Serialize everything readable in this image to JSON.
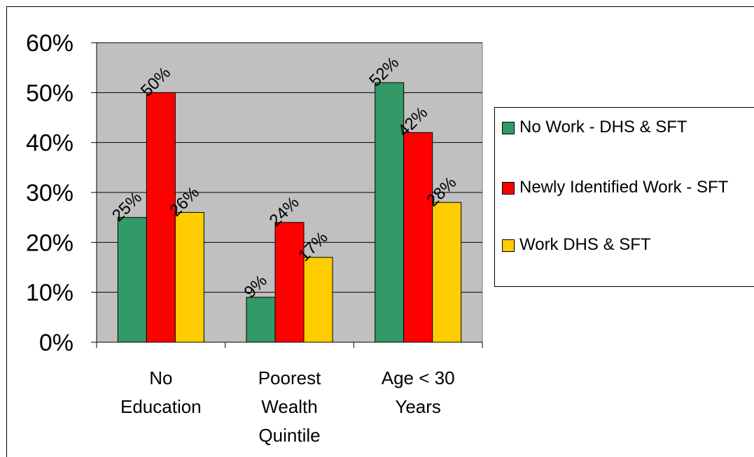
{
  "chart_data": {
    "type": "bar",
    "categories": [
      "No Education",
      "Poorest Wealth Quintile",
      "Age < 30 Years"
    ],
    "category_lines": [
      [
        "No",
        "Education"
      ],
      [
        "Poorest",
        "Wealth",
        "Quintile"
      ],
      [
        "Age < 30",
        "Years"
      ]
    ],
    "series": [
      {
        "name": "No Work - DHS & SFT",
        "values": [
          25,
          9,
          52
        ],
        "labels": [
          "25%",
          "9%",
          "52%"
        ],
        "color": "#339966"
      },
      {
        "name": "Newly Identified Work - SFT",
        "values": [
          50,
          24,
          42
        ],
        "labels": [
          "50%",
          "24%",
          "42%"
        ],
        "color": "#ff0000"
      },
      {
        "name": "Work DHS & SFT",
        "values": [
          26,
          17,
          28
        ],
        "labels": [
          "26%",
          "17%",
          "28%"
        ],
        "color": "#ffcc00"
      }
    ],
    "ylim": [
      0,
      60
    ],
    "yticks": [
      0,
      10,
      20,
      30,
      40,
      50,
      60
    ],
    "ytick_labels": [
      "0%",
      "10%",
      "20%",
      "30%",
      "40%",
      "50%",
      "60%"
    ],
    "grid": true,
    "plot_background": "#c0c0c0",
    "legend_position": "right"
  },
  "legend": {
    "items": [
      {
        "label": "No Work - DHS & SFT",
        "color": "#339966"
      },
      {
        "label": "Newly Identified Work - SFT",
        "color": "#ff0000"
      },
      {
        "label": "Work DHS & SFT",
        "color": "#ffcc00"
      }
    ]
  }
}
